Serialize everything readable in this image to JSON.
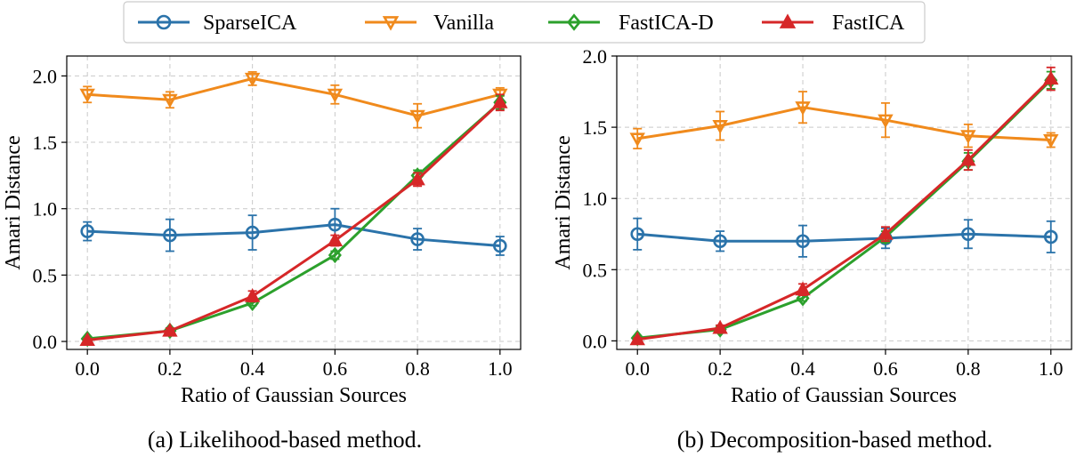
{
  "legend": {
    "items": [
      {
        "label": "SparseICA",
        "color": "#2b73aa",
        "marker": "circle"
      },
      {
        "label": "Vanilla",
        "color": "#f08a1c",
        "marker": "triangle-down"
      },
      {
        "label": "FastICA-D",
        "color": "#2ca02c",
        "marker": "diamond"
      },
      {
        "label": "FastICA",
        "color": "#d62728",
        "marker": "triangle-up"
      }
    ]
  },
  "chart_data": [
    {
      "type": "line",
      "caption": "(a) Likelihood-based method.",
      "xlabel": "Ratio of Gaussian Sources",
      "ylabel": "Amari Distance",
      "xlim": [
        -0.05,
        1.05
      ],
      "ylim": [
        -0.06,
        2.15
      ],
      "grid": true,
      "x": [
        0.0,
        0.2,
        0.4,
        0.6,
        0.8,
        1.0
      ],
      "xticks": [
        0.0,
        0.2,
        0.4,
        0.6,
        0.8,
        1.0
      ],
      "xtick_labels": [
        "0.0",
        "0.2",
        "0.4",
        "0.6",
        "0.8",
        "1.0"
      ],
      "yticks": [
        0.0,
        0.5,
        1.0,
        1.5,
        2.0
      ],
      "ytick_labels": [
        "0.0",
        "0.5",
        "1.0",
        "1.5",
        "2.0"
      ],
      "series": [
        {
          "name": "SparseICA",
          "values": [
            0.83,
            0.8,
            0.82,
            0.88,
            0.77,
            0.72
          ],
          "errors": [
            0.07,
            0.12,
            0.13,
            0.12,
            0.08,
            0.07
          ]
        },
        {
          "name": "Vanilla",
          "values": [
            1.86,
            1.82,
            1.98,
            1.86,
            1.7,
            1.86
          ],
          "errors": [
            0.06,
            0.06,
            0.05,
            0.07,
            0.09,
            0.05
          ]
        },
        {
          "name": "FastICA-D",
          "values": [
            0.02,
            0.08,
            0.29,
            0.65,
            1.25,
            1.8
          ],
          "errors": [
            0.01,
            0.02,
            0.02,
            0.03,
            0.04,
            0.05
          ]
        },
        {
          "name": "FastICA",
          "values": [
            0.01,
            0.08,
            0.34,
            0.76,
            1.22,
            1.8
          ],
          "errors": [
            0.01,
            0.02,
            0.04,
            0.04,
            0.05,
            0.06
          ]
        }
      ]
    },
    {
      "type": "line",
      "caption": "(b) Decomposition-based method.",
      "xlabel": "Ratio of Gaussian Sources",
      "ylabel": "Amari Distance",
      "xlim": [
        -0.05,
        1.05
      ],
      "ylim": [
        -0.06,
        2.0
      ],
      "grid": true,
      "x": [
        0.0,
        0.2,
        0.4,
        0.6,
        0.8,
        1.0
      ],
      "xticks": [
        0.0,
        0.2,
        0.4,
        0.6,
        0.8,
        1.0
      ],
      "xtick_labels": [
        "0.0",
        "0.2",
        "0.4",
        "0.6",
        "0.8",
        "1.0"
      ],
      "yticks": [
        0.0,
        0.5,
        1.0,
        1.5,
        2.0
      ],
      "ytick_labels": [
        "0.0",
        "0.5",
        "1.0",
        "1.5",
        "2.0"
      ],
      "series": [
        {
          "name": "SparseICA",
          "values": [
            0.75,
            0.7,
            0.7,
            0.72,
            0.75,
            0.73
          ],
          "errors": [
            0.11,
            0.07,
            0.11,
            0.07,
            0.1,
            0.11
          ]
        },
        {
          "name": "Vanilla",
          "values": [
            1.42,
            1.51,
            1.64,
            1.55,
            1.44,
            1.41
          ],
          "errors": [
            0.07,
            0.1,
            0.11,
            0.12,
            0.08,
            0.05
          ]
        },
        {
          "name": "FastICA-D",
          "values": [
            0.02,
            0.08,
            0.3,
            0.73,
            1.26,
            1.83
          ],
          "errors": [
            0.01,
            0.02,
            0.02,
            0.04,
            0.06,
            0.06
          ]
        },
        {
          "name": "FastICA",
          "values": [
            0.01,
            0.09,
            0.36,
            0.75,
            1.27,
            1.84
          ],
          "errors": [
            0.01,
            0.02,
            0.04,
            0.05,
            0.07,
            0.08
          ]
        }
      ]
    }
  ]
}
